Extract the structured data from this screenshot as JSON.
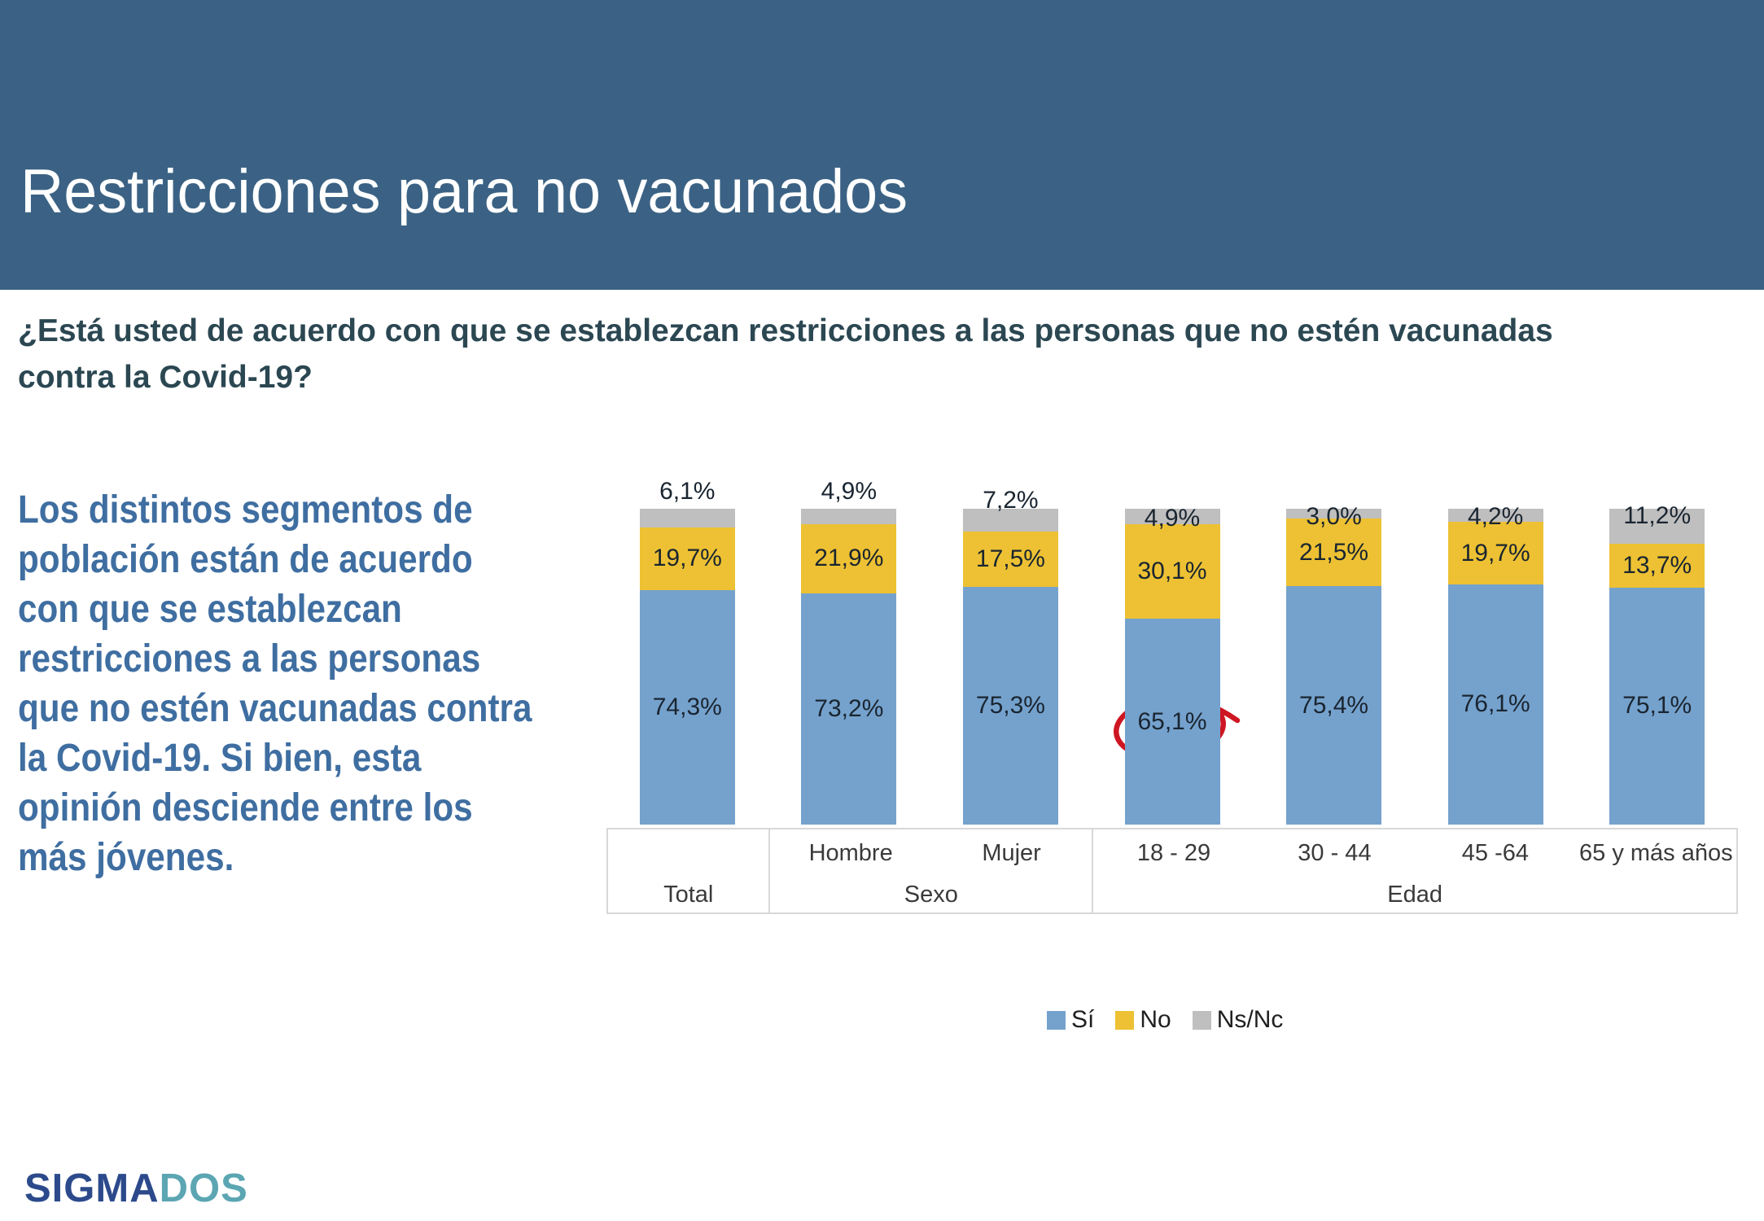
{
  "slide": {
    "title": "Restricciones para no vacunados",
    "question_lines": [
      "¿Está usted de acuerdo con que se establezcan restricciones a las personas que no estén vacunadas",
      "contra la Covid-19?"
    ],
    "commentary_lines": [
      "Los distintos segmentos de",
      "población están de acuerdo",
      "con que se establezcan",
      "restricciones a las personas",
      "que no estén vacunadas contra",
      "la Covid-19. Si bien, esta",
      "opinión desciende entre los",
      "más jóvenes."
    ],
    "logo": {
      "sigma": "SIGMA",
      "dos": "DOS"
    }
  },
  "colors": {
    "header_bg": "#3B6284",
    "question_text": "#2B4752",
    "commentary_text": "#3F6EA1",
    "annotation_red": "#CE1622"
  },
  "chart_data": {
    "type": "bar",
    "stacked": true,
    "percent_stacked": true,
    "ylim": [
      0,
      100
    ],
    "grid": false,
    "categories": [
      "Total",
      "Hombre",
      "Mujer",
      "18 - 29",
      "30 - 44",
      "45 -64",
      "65 y más años"
    ],
    "series": [
      {
        "name": "Sí",
        "color": "#75A2CD",
        "values": [
          74.3,
          73.2,
          75.3,
          65.1,
          75.4,
          76.1,
          75.1
        ]
      },
      {
        "name": "No",
        "color": "#EDC133",
        "values": [
          19.7,
          21.9,
          17.5,
          30.1,
          21.5,
          19.7,
          13.7
        ]
      },
      {
        "name": "Ns/Nc",
        "color": "#C0BFBF",
        "values": [
          6.1,
          4.9,
          7.2,
          4.9,
          3.0,
          4.2,
          11.2
        ]
      }
    ],
    "value_labels": {
      "Sí": [
        "74,3%",
        "73,2%",
        "75,3%",
        "65,1%",
        "75,4%",
        "76,1%",
        "75,1%"
      ],
      "No": [
        "19,7%",
        "21,9%",
        "17,5%",
        "30,1%",
        "21,5%",
        "19,7%",
        "13,7%"
      ],
      "Ns/Nc": [
        "6,1%",
        "4,9%",
        "7,2%",
        "4,9%",
        "3,0%",
        "4,2%",
        "11,2%"
      ]
    },
    "axis_groups": [
      {
        "label": "Total",
        "span": 1
      },
      {
        "label": "Sexo",
        "span": 2
      },
      {
        "label": "Edad",
        "span": 4
      }
    ],
    "legend": {
      "position": "bottom",
      "entries": [
        "Sí",
        "No",
        "Ns/Nc"
      ]
    },
    "annotation": {
      "type": "hand-drawn-circle",
      "target_category": "18 - 29",
      "target_series": "Sí",
      "value_label": "65,1%",
      "color": "#CE1622"
    },
    "layout": {
      "nsnc_label_dy": [
        -21,
        -21,
        -10,
        12,
        10,
        10,
        9
      ]
    }
  }
}
